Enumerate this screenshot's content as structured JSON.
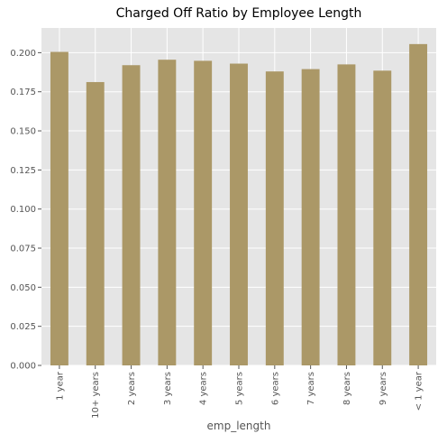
{
  "chart_data": {
    "type": "bar",
    "title": "Charged Off Ratio by Employee Length",
    "xlabel": "emp_length",
    "ylabel": "",
    "categories": [
      "1 year",
      "10+ years",
      "2 years",
      "3 years",
      "4 years",
      "5 years",
      "6 years",
      "7 years",
      "8 years",
      "9 years",
      "< 1 year"
    ],
    "values": [
      0.2005,
      0.1812,
      0.192,
      0.1955,
      0.1948,
      0.193,
      0.188,
      0.1895,
      0.1925,
      0.1885,
      0.2055
    ],
    "ylim": [
      0.0,
      0.2158
    ],
    "yticks": [
      0.0,
      0.025,
      0.05,
      0.075,
      0.1,
      0.125,
      0.15,
      0.175,
      0.2
    ],
    "ytick_labels": [
      "0.000",
      "0.025",
      "0.050",
      "0.075",
      "0.100",
      "0.125",
      "0.150",
      "0.175",
      "0.200"
    ],
    "grid": true,
    "legend": "none",
    "colors": {
      "bar": "#ab9867",
      "plot_background": "#e5e5e5",
      "grid": "#ffffff",
      "text": "#555555",
      "title": "#000000"
    }
  }
}
